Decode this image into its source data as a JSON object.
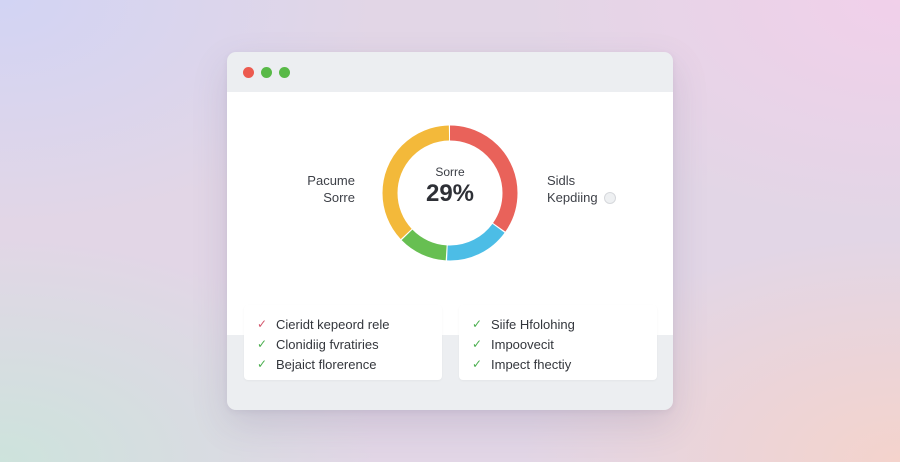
{
  "colors": {
    "close_dot": "#ec5a4f",
    "minimize_dot": "#58b947",
    "maximize_dot": "#58b947",
    "segment_red": "#e9625a",
    "segment_blue": "#4cbde6",
    "segment_green": "#67bf52",
    "segment_yellow": "#f3b93a",
    "check_pink": "#d4586e",
    "check_green": "#4caf50"
  },
  "window": {
    "controls": [
      "close",
      "minimize",
      "maximize"
    ]
  },
  "score": {
    "label": "Sorre",
    "value": "29%",
    "segments": [
      {
        "color_key": "segment_red",
        "value": 0.35
      },
      {
        "color_key": "segment_blue",
        "value": 0.16
      },
      {
        "color_key": "segment_green",
        "value": 0.12
      },
      {
        "color_key": "segment_yellow",
        "value": 0.37
      }
    ]
  },
  "left_label": {
    "line1": "Pacume",
    "line2": "Sorre"
  },
  "right_label": {
    "line1": "Sidls",
    "line2": "Kepdiing",
    "icon": "help-icon"
  },
  "checklists": {
    "left": [
      {
        "label": "Cieridt kepeord rele",
        "check": "check_pink"
      },
      {
        "label": "Clonidiig fvratiries",
        "check": "check_green"
      },
      {
        "label": "Bejaict florerence",
        "check": "check_green"
      }
    ],
    "right": [
      {
        "label": "Siife Hfolohing",
        "check": "check_green"
      },
      {
        "label": "Impoovecit",
        "check": "check_green"
      },
      {
        "label": "Impect fhectiy",
        "check": "check_green"
      }
    ]
  }
}
